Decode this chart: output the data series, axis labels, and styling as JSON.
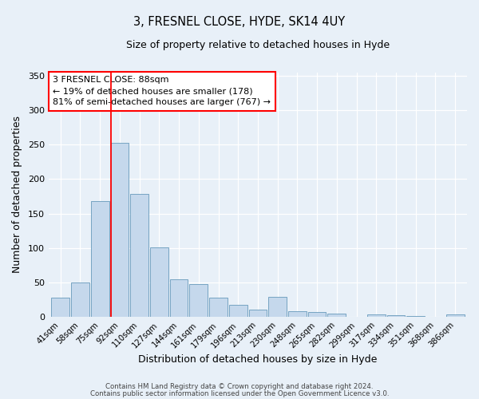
{
  "title": "3, FRESNEL CLOSE, HYDE, SK14 4UY",
  "subtitle": "Size of property relative to detached houses in Hyde",
  "xlabel": "Distribution of detached houses by size in Hyde",
  "ylabel": "Number of detached properties",
  "bar_color": "#c5d8ec",
  "bar_edge_color": "#6699bb",
  "bg_color": "#e8f0f8",
  "fig_bg_color": "#e8f0f8",
  "grid_color": "#ffffff",
  "categories": [
    "41sqm",
    "58sqm",
    "75sqm",
    "92sqm",
    "110sqm",
    "127sqm",
    "144sqm",
    "161sqm",
    "179sqm",
    "196sqm",
    "213sqm",
    "230sqm",
    "248sqm",
    "265sqm",
    "282sqm",
    "299sqm",
    "317sqm",
    "334sqm",
    "351sqm",
    "368sqm",
    "386sqm"
  ],
  "values": [
    28,
    50,
    168,
    252,
    178,
    101,
    55,
    48,
    28,
    17,
    11,
    29,
    8,
    7,
    5,
    0,
    4,
    2,
    1,
    0,
    4
  ],
  "ylim": [
    0,
    355
  ],
  "yticks": [
    0,
    50,
    100,
    150,
    200,
    250,
    300,
    350
  ],
  "red_line_x": 2.575,
  "annotation_title": "3 FRESNEL CLOSE: 88sqm",
  "annotation_line1": "← 19% of detached houses are smaller (178)",
  "annotation_line2": "81% of semi-detached houses are larger (767) →",
  "footnote1": "Contains HM Land Registry data © Crown copyright and database right 2024.",
  "footnote2": "Contains public sector information licensed under the Open Government Licence v3.0."
}
